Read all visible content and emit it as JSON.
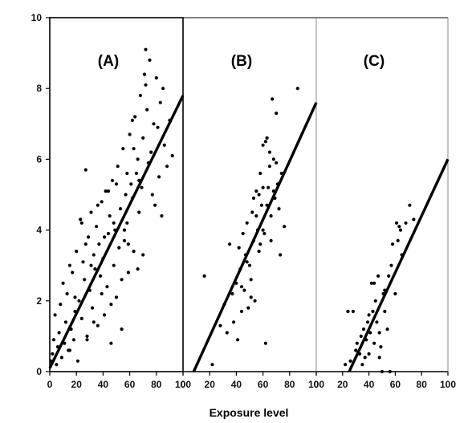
{
  "chart_data": {
    "type": "scatter",
    "xlabel": "Exposure level",
    "ylabel": "",
    "ylim": [
      0,
      10
    ],
    "y_ticks": [
      "0",
      "2",
      "4",
      "6",
      "8",
      "10"
    ],
    "x_ticks": [
      "0",
      "20",
      "40",
      "60",
      "80",
      "100"
    ],
    "grid": false,
    "colors": {
      "points": "#000000",
      "line": "#000000",
      "frame": "#000000",
      "divider": "#888888"
    },
    "panels": [
      {
        "label": "(A)",
        "xlim": [
          0,
          100
        ],
        "fit_line": {
          "x": [
            0,
            100
          ],
          "y": [
            0.1,
            7.8
          ]
        },
        "points": [
          [
            1,
            0.3
          ],
          [
            2,
            0.5
          ],
          [
            3,
            0.9
          ],
          [
            4,
            1.6
          ],
          [
            5,
            0.2
          ],
          [
            6,
            0.7
          ],
          [
            7,
            1.1
          ],
          [
            8,
            1.9
          ],
          [
            9,
            0.4
          ],
          [
            10,
            2.5
          ],
          [
            11,
            0.8
          ],
          [
            12,
            1.4
          ],
          [
            13,
            2.2
          ],
          [
            14,
            0.6
          ],
          [
            15,
            3.0
          ],
          [
            16,
            1.2
          ],
          [
            17,
            2.8
          ],
          [
            18,
            0.9
          ],
          [
            19,
            1.7
          ],
          [
            20,
            3.4
          ],
          [
            21,
            0.3
          ],
          [
            22,
            2.0
          ],
          [
            23,
            4.3
          ],
          [
            24,
            1.5
          ],
          [
            25,
            3.1
          ],
          [
            26,
            2.6
          ],
          [
            27,
            5.7
          ],
          [
            28,
            1.0
          ],
          [
            29,
            3.8
          ],
          [
            30,
            2.3
          ],
          [
            31,
            4.5
          ],
          [
            32,
            1.8
          ],
          [
            33,
            3.3
          ],
          [
            34,
            2.9
          ],
          [
            35,
            4.1
          ],
          [
            36,
            1.3
          ],
          [
            37,
            3.6
          ],
          [
            38,
            2.7
          ],
          [
            39,
            4.8
          ],
          [
            40,
            3.2
          ],
          [
            41,
            1.6
          ],
          [
            42,
            5.1
          ],
          [
            43,
            2.4
          ],
          [
            44,
            3.9
          ],
          [
            45,
            4.4
          ],
          [
            46,
            0.8
          ],
          [
            47,
            5.4
          ],
          [
            48,
            3.0
          ],
          [
            49,
            4.0
          ],
          [
            50,
            2.1
          ],
          [
            51,
            5.8
          ],
          [
            52,
            3.5
          ],
          [
            53,
            4.6
          ],
          [
            54,
            1.2
          ],
          [
            55,
            6.3
          ],
          [
            56,
            3.7
          ],
          [
            57,
            5.0
          ],
          [
            58,
            4.2
          ],
          [
            59,
            2.8
          ],
          [
            60,
            6.7
          ],
          [
            61,
            5.3
          ],
          [
            62,
            4.9
          ],
          [
            63,
            3.4
          ],
          [
            64,
            7.2
          ],
          [
            65,
            5.6
          ],
          [
            66,
            6.0
          ],
          [
            67,
            4.5
          ],
          [
            68,
            7.8
          ],
          [
            69,
            5.2
          ],
          [
            70,
            6.6
          ],
          [
            71,
            8.4
          ],
          [
            72,
            9.1
          ],
          [
            73,
            7.4
          ],
          [
            74,
            5.9
          ],
          [
            75,
            8.8
          ],
          [
            76,
            6.2
          ],
          [
            77,
            5.0
          ],
          [
            78,
            7.0
          ],
          [
            79,
            4.7
          ],
          [
            80,
            8.3
          ],
          [
            81,
            6.9
          ],
          [
            82,
            5.5
          ],
          [
            83,
            7.6
          ],
          [
            84,
            4.4
          ],
          [
            85,
            8.0
          ],
          [
            86,
            6.4
          ],
          [
            88,
            5.8
          ],
          [
            90,
            7.1
          ],
          [
            92,
            6.1
          ],
          [
            24,
            4.2
          ],
          [
            28,
            0.9
          ],
          [
            33,
            1.4
          ],
          [
            36,
            4.7
          ],
          [
            41,
            3.8
          ],
          [
            46,
            1.9
          ],
          [
            50,
            5.3
          ],
          [
            54,
            2.6
          ],
          [
            58,
            5.6
          ],
          [
            63,
            6.3
          ],
          [
            66,
            2.9
          ],
          [
            70,
            3.3
          ],
          [
            15,
            0.6
          ],
          [
            19,
            2.1
          ],
          [
            31,
            3.0
          ],
          [
            44,
            5.1
          ],
          [
            56,
            4.0
          ],
          [
            62,
            7.1
          ],
          [
            67,
            5.4
          ],
          [
            72,
            8.1
          ],
          [
            27,
            3.6
          ],
          [
            39,
            2.2
          ],
          [
            48,
            4.2
          ],
          [
            59,
            3.6
          ]
        ]
      },
      {
        "label": "(B)",
        "xlim": [
          0,
          100
        ],
        "fit_line": {
          "x": [
            8,
            100
          ],
          "y": [
            0.0,
            7.6
          ]
        },
        "points": [
          [
            16,
            2.7
          ],
          [
            22,
            0.2
          ],
          [
            28,
            1.3
          ],
          [
            31,
            1.9
          ],
          [
            35,
            3.6
          ],
          [
            38,
            1.4
          ],
          [
            40,
            2.5
          ],
          [
            41,
            0.9
          ],
          [
            43,
            2.9
          ],
          [
            44,
            1.7
          ],
          [
            45,
            3.9
          ],
          [
            46,
            2.3
          ],
          [
            47,
            3.3
          ],
          [
            48,
            4.2
          ],
          [
            49,
            1.8
          ],
          [
            50,
            3.0
          ],
          [
            51,
            2.6
          ],
          [
            52,
            4.5
          ],
          [
            53,
            3.7
          ],
          [
            54,
            2.0
          ],
          [
            55,
            5.1
          ],
          [
            56,
            4.0
          ],
          [
            57,
            3.4
          ],
          [
            58,
            5.6
          ],
          [
            59,
            4.7
          ],
          [
            60,
            6.4
          ],
          [
            61,
            3.9
          ],
          [
            62,
            0.8
          ],
          [
            63,
            6.6
          ],
          [
            64,
            5.2
          ],
          [
            65,
            5.8
          ],
          [
            66,
            4.4
          ],
          [
            67,
            7.7
          ],
          [
            68,
            6.0
          ],
          [
            69,
            4.9
          ],
          [
            70,
            7.3
          ],
          [
            71,
            5.3
          ],
          [
            72,
            4.6
          ],
          [
            73,
            3.3
          ],
          [
            74,
            5.6
          ],
          [
            76,
            4.1
          ],
          [
            86,
            8.0
          ],
          [
            48,
            3.1
          ],
          [
            53,
            4.9
          ],
          [
            58,
            3.6
          ],
          [
            60,
            5.2
          ],
          [
            63,
            4.7
          ],
          [
            65,
            6.2
          ],
          [
            44,
            2.4
          ],
          [
            51,
            2.1
          ],
          [
            55,
            4.4
          ],
          [
            60,
            4.0
          ],
          [
            68,
            5.1
          ],
          [
            37,
            2.2
          ],
          [
            42,
            3.5
          ],
          [
            57,
            5.0
          ],
          [
            62,
            6.5
          ],
          [
            66,
            3.7
          ],
          [
            70,
            5.9
          ],
          [
            33,
            1.1
          ]
        ]
      },
      {
        "label": "(C)",
        "xlim": [
          0,
          100
        ],
        "fit_line": {
          "x": [
            25,
            100
          ],
          "y": [
            0.0,
            6.0
          ]
        },
        "points": [
          [
            22,
            0.2
          ],
          [
            24,
            1.7
          ],
          [
            26,
            0.3
          ],
          [
            28,
            1.7
          ],
          [
            30,
            0.6
          ],
          [
            31,
            0.8
          ],
          [
            33,
            0.5
          ],
          [
            34,
            1.0
          ],
          [
            35,
            0.2
          ],
          [
            36,
            1.2
          ],
          [
            37,
            0.4
          ],
          [
            38,
            0.9
          ],
          [
            39,
            1.4
          ],
          [
            40,
            0.5
          ],
          [
            41,
            1.1
          ],
          [
            42,
            2.5
          ],
          [
            43,
            1.7
          ],
          [
            44,
            0.8
          ],
          [
            45,
            2.0
          ],
          [
            46,
            1.4
          ],
          [
            47,
            2.7
          ],
          [
            48,
            1.1
          ],
          [
            49,
            0.7
          ],
          [
            50,
            0.0
          ],
          [
            51,
            2.2
          ],
          [
            52,
            1.7
          ],
          [
            54,
            1.2
          ],
          [
            55,
            2.7
          ],
          [
            56,
            0.0
          ],
          [
            57,
            3.0
          ],
          [
            58,
            3.6
          ],
          [
            60,
            2.2
          ],
          [
            61,
            4.2
          ],
          [
            62,
            3.7
          ],
          [
            63,
            4.1
          ],
          [
            64,
            4.0
          ],
          [
            65,
            3.3
          ],
          [
            68,
            4.2
          ],
          [
            71,
            4.7
          ],
          [
            74,
            4.3
          ],
          [
            40,
            1.6
          ],
          [
            44,
            2.5
          ],
          [
            48,
            0.4
          ],
          [
            52,
            2.3
          ]
        ]
      }
    ]
  }
}
